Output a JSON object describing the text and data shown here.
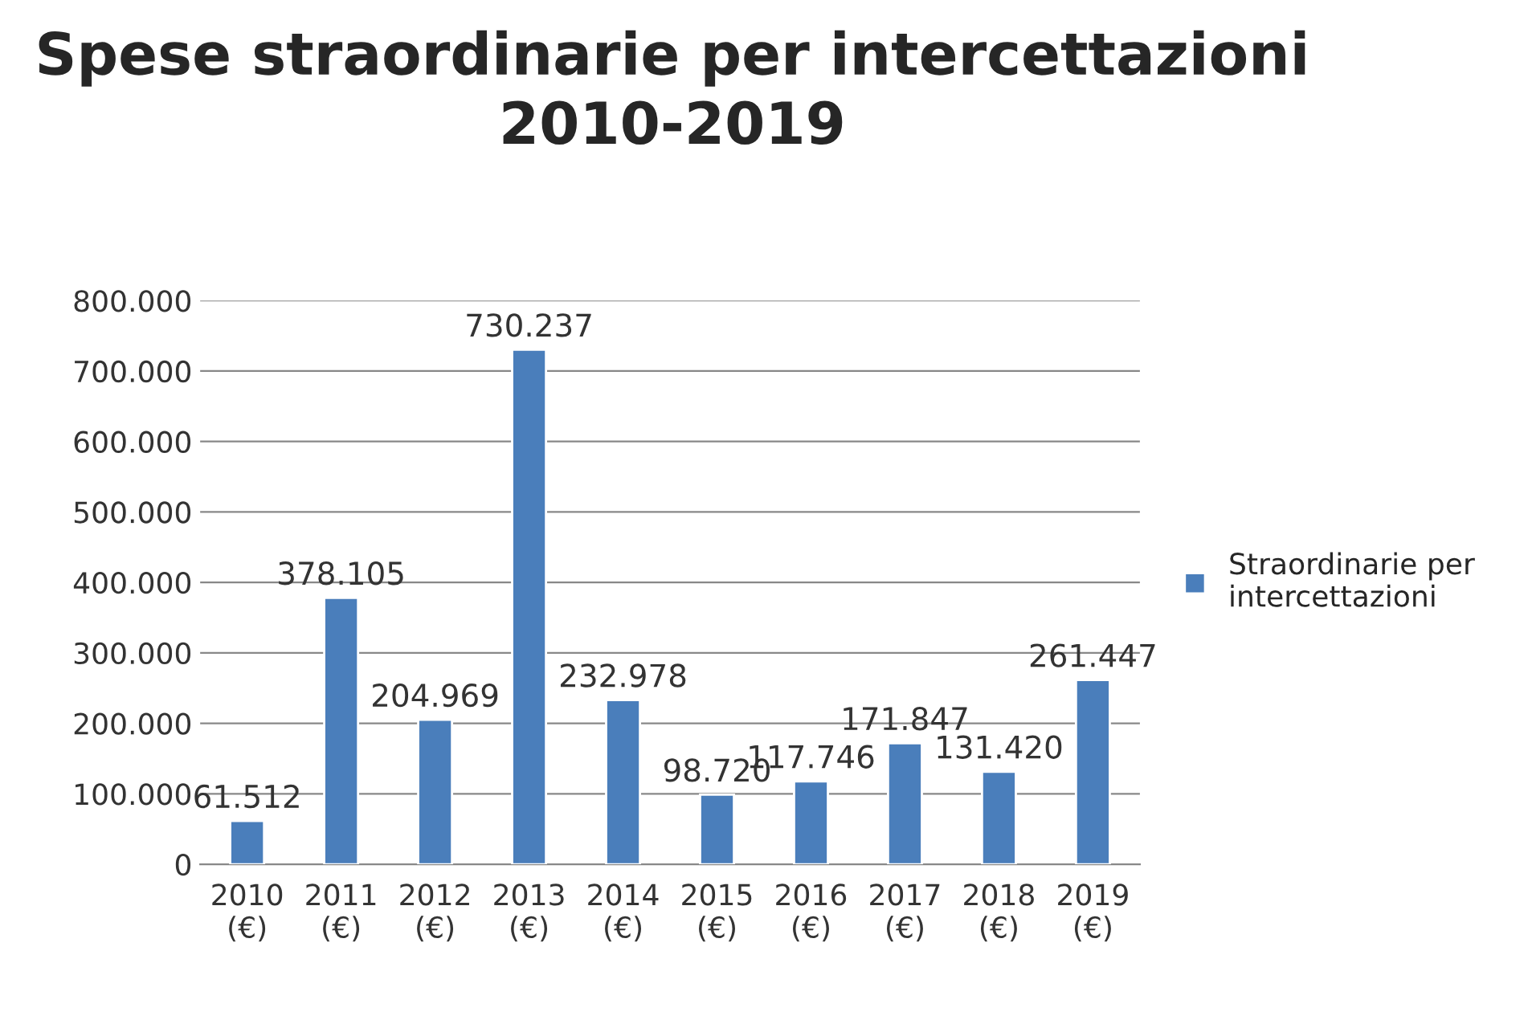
{
  "chart_data": {
    "type": "bar",
    "title": "Spese straordinarie per intercettazioni\n2010-2019",
    "categories": [
      "2010\n(€)",
      "2011\n(€)",
      "2012\n(€)",
      "2013\n(€)",
      "2014\n(€)",
      "2015\n(€)",
      "2016\n(€)",
      "2017\n(€)",
      "2018\n(€)",
      "2019\n(€)"
    ],
    "series": [
      {
        "name": "Straordinarie per\nintercettazioni",
        "color": "#4a7ebb",
        "values": [
          61512,
          378105,
          204969,
          730237,
          232978,
          98720,
          117746,
          171847,
          131420,
          261447
        ],
        "value_labels": [
          "61.512",
          "378.105",
          "204.969",
          "730.237",
          "232.978",
          "98.720",
          "117.746",
          "171.847",
          "131.420",
          "261.447"
        ]
      }
    ],
    "ylim": [
      0,
      800000
    ],
    "yticks": [
      {
        "value": 0,
        "label": "0"
      },
      {
        "value": 100000,
        "label": "100.000"
      },
      {
        "value": 200000,
        "label": "200.000"
      },
      {
        "value": 300000,
        "label": "300.000"
      },
      {
        "value": 400000,
        "label": "400.000"
      },
      {
        "value": 500000,
        "label": "500.000"
      },
      {
        "value": 600000,
        "label": "600.000"
      },
      {
        "value": 700000,
        "label": "700.000"
      },
      {
        "value": 800000,
        "label": "800.000"
      }
    ],
    "grid": "y",
    "legend": "right"
  }
}
